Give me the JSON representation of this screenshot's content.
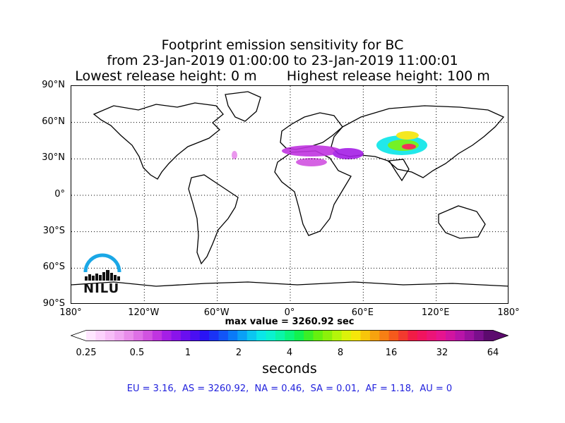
{
  "title": {
    "line1": "Footprint emission sensitivity for BC",
    "line2": "from 23-Jan-2019 01:00:00 to 23-Jan-2019 11:00:01",
    "line3": "Lowest release height: 0 m       Highest release height: 100 m"
  },
  "map": {
    "lat_labels": [
      "90°N",
      "60°N",
      "30°N",
      "0°",
      "30°S",
      "60°S",
      "90°S"
    ],
    "lon_labels": [
      "180°",
      "120°W",
      "60°W",
      "0°",
      "60°E",
      "120°E",
      "180°"
    ],
    "lat_values": [
      90,
      60,
      30,
      0,
      -30,
      -60,
      -90
    ],
    "lon_values": [
      -180,
      -120,
      -60,
      0,
      60,
      120,
      180
    ],
    "grid": "dotted"
  },
  "max_value_text": "max value = 3260.92 sec",
  "colorbar": {
    "unit": "seconds",
    "tick_labels": [
      "0.25",
      "0.5",
      "1",
      "2",
      "4",
      "8",
      "16",
      "32",
      "64"
    ],
    "colors": [
      "#ffe6ff",
      "#fcd2fc",
      "#f7bdf7",
      "#f0a6f2",
      "#e88ceb",
      "#de70e6",
      "#d153e0",
      "#c034e0",
      "#a51fe6",
      "#8a14ea",
      "#6a0ff0",
      "#4a0ff2",
      "#2a14f4",
      "#1a33f5",
      "#1255f7",
      "#0a7af8",
      "#0aa0f6",
      "#0bc6f0",
      "#0ae6e8",
      "#0af2cf",
      "#0af5a8",
      "#0af57c",
      "#12f24f",
      "#3bef26",
      "#66f00f",
      "#8cf00a",
      "#b4f50a",
      "#dcf20a",
      "#f5e60a",
      "#f7c50a",
      "#f7a30f",
      "#f77f14",
      "#f55a1c",
      "#f23a2e",
      "#f01c46",
      "#f0145f",
      "#eb1478",
      "#e6148f",
      "#d114a0",
      "#b814a8",
      "#9a129e",
      "#7a0f8c",
      "#5c0a6e"
    ],
    "extend_min_color": "#ffffff",
    "extend_max_color": "#5c0a6e"
  },
  "stats_text": "EU = 3.16,  AS = 3260.92,  NA = 0.46,  SA = 0.01,  AF = 1.18,  AU = 0",
  "logo": {
    "text": "NILU",
    "arc_color": "#1aa7e6"
  }
}
